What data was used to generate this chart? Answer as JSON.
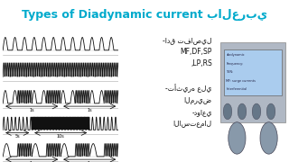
{
  "title": "Types of Diadynamic current بالعربي",
  "title_color": "#00aacc",
  "bg_color": "#ffffff",
  "waveforms": [
    "MF",
    "DF",
    "SP",
    "LP",
    "RS"
  ],
  "right_text_line1": "-ادق تفاصيل",
  "right_text_line2": "MF,DF,SP",
  "right_text_line3": ",LP,RS",
  "right_text_line4": "",
  "right_text_line5": "-تأثيره علي",
  "right_text_line6": "المريض",
  "right_text_line7": "-دواعي",
  "right_text_line8": "الاستعمال",
  "panel_bg": "#d0d8e0",
  "wave_color": "#111111",
  "grid_color": "#888888"
}
